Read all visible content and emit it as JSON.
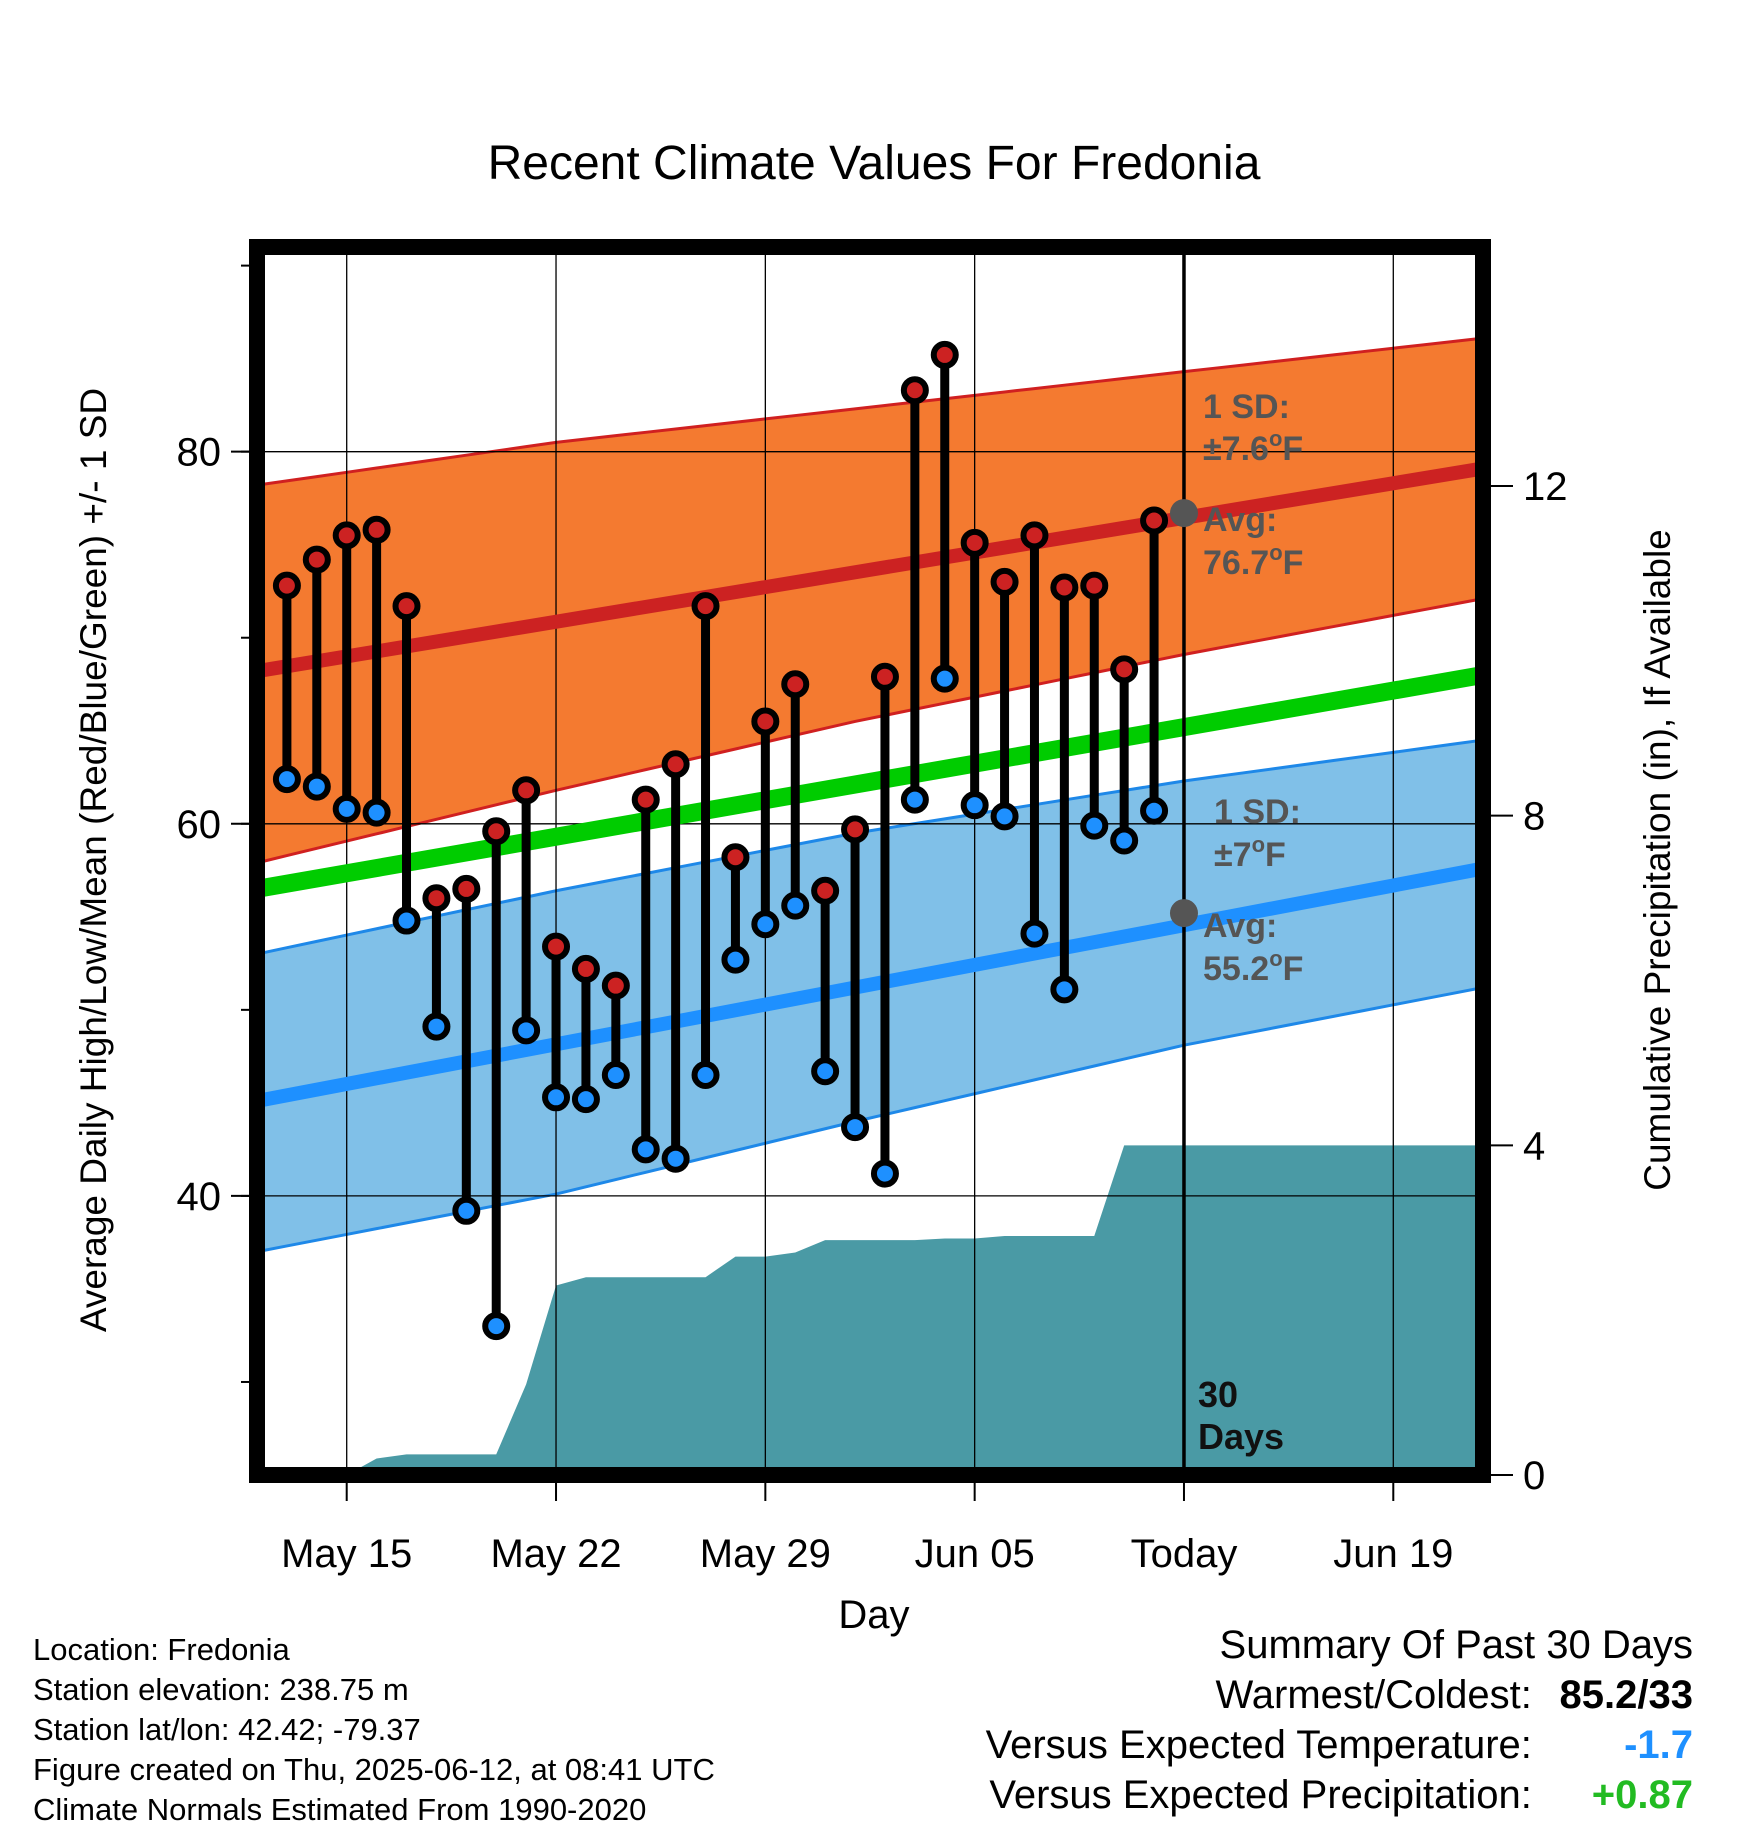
{
  "chart_data": {
    "type": "line",
    "title": "Recent Climate Values For Fredonia",
    "xlabel": "Day",
    "ylabel": "Average Daily High/Low/Mean (Red/Blue/Green) +/- 1 SD",
    "y2label": "Cumulative Precipitation (in), If Available",
    "x_tick_labels": [
      "May 15",
      "May 22",
      "May 29",
      "Jun 05",
      "Today",
      "Jun 19"
    ],
    "x_tick_dates": [
      "2025-05-15",
      "2025-05-22",
      "2025-05-29",
      "2025-06-05",
      "2025-06-12",
      "2025-06-19"
    ],
    "xlim": [
      "2025-05-12",
      "2025-06-22"
    ],
    "ylim": [
      25,
      91
    ],
    "y_ticks": [
      40,
      60,
      80
    ],
    "y2lim": [
      0,
      14.9
    ],
    "y2_ticks": [
      0,
      4,
      8,
      12
    ],
    "grid": true,
    "today": "2025-06-12",
    "today_label": "30\nDays",
    "daily": {
      "dates": [
        "2025-05-13",
        "2025-05-14",
        "2025-05-15",
        "2025-05-16",
        "2025-05-17",
        "2025-05-18",
        "2025-05-19",
        "2025-05-20",
        "2025-05-21",
        "2025-05-22",
        "2025-05-23",
        "2025-05-24",
        "2025-05-25",
        "2025-05-26",
        "2025-05-27",
        "2025-05-28",
        "2025-05-29",
        "2025-05-30",
        "2025-05-31",
        "2025-06-01",
        "2025-06-02",
        "2025-06-03",
        "2025-06-04",
        "2025-06-05",
        "2025-06-06",
        "2025-06-07",
        "2025-06-08",
        "2025-06-09",
        "2025-06-10",
        "2025-06-11"
      ],
      "high": [
        72.8,
        74.2,
        75.5,
        75.8,
        71.7,
        56.0,
        56.5,
        59.6,
        61.8,
        53.4,
        52.2,
        51.3,
        61.3,
        63.2,
        71.7,
        58.2,
        65.5,
        67.5,
        56.4,
        59.7,
        67.9,
        83.3,
        85.2,
        75.1,
        73.0,
        75.5,
        72.7,
        72.8,
        68.3,
        76.3
      ],
      "low": [
        62.4,
        62.0,
        60.8,
        60.6,
        54.8,
        49.1,
        39.2,
        33.0,
        48.9,
        45.3,
        45.2,
        46.5,
        42.5,
        42.0,
        46.5,
        52.7,
        54.6,
        55.6,
        46.7,
        43.7,
        41.2,
        61.3,
        67.8,
        61.0,
        60.4,
        54.1,
        51.1,
        59.9,
        59.1,
        60.7
      ]
    },
    "series": [
      {
        "name": "Average High",
        "color": "#cc2222",
        "x": [
          "2025-05-12",
          "2025-06-22"
        ],
        "values": [
          68.2,
          79.1
        ]
      },
      {
        "name": "Average Mean",
        "color": "#00cc00",
        "x": [
          "2025-05-12",
          "2025-06-22"
        ],
        "values": [
          56.5,
          68.0
        ]
      },
      {
        "name": "Average Low",
        "color": "#1e90ff",
        "x": [
          "2025-05-12",
          "2025-06-22"
        ],
        "values": [
          45.1,
          57.6
        ]
      }
    ],
    "bands": [
      {
        "name": "High +/- 1 SD",
        "color": "#f47a30",
        "upper": [
          [
            "2025-05-12",
            78.2
          ],
          [
            "2025-05-22",
            80.5
          ],
          [
            "2025-06-01",
            82.3
          ],
          [
            "2025-06-12",
            84.3
          ],
          [
            "2025-06-22",
            86.1
          ]
        ],
        "lower": [
          [
            "2025-05-12",
            57.9
          ],
          [
            "2025-05-22",
            61.8
          ],
          [
            "2025-06-01",
            65.5
          ],
          [
            "2025-06-12",
            69.1
          ],
          [
            "2025-06-22",
            72.1
          ]
        ]
      },
      {
        "name": "Low +/- 1 SD",
        "color": "#80c0e8",
        "upper": [
          [
            "2025-05-12",
            53.0
          ],
          [
            "2025-05-22",
            56.4
          ],
          [
            "2025-06-01",
            59.5
          ],
          [
            "2025-06-12",
            62.3
          ],
          [
            "2025-06-22",
            64.5
          ]
        ],
        "lower": [
          [
            "2025-05-12",
            37.0
          ],
          [
            "2025-05-22",
            40.1
          ],
          [
            "2025-06-01",
            44.0
          ],
          [
            "2025-06-12",
            48.1
          ],
          [
            "2025-06-22",
            51.2
          ]
        ]
      }
    ],
    "precipitation": {
      "color": "#4a9aa5",
      "dates": [
        "2025-05-12",
        "2025-05-15",
        "2025-05-16",
        "2025-05-17",
        "2025-05-18",
        "2025-05-19",
        "2025-05-20",
        "2025-05-21",
        "2025-05-22",
        "2025-05-23",
        "2025-05-24",
        "2025-05-25",
        "2025-05-26",
        "2025-05-27",
        "2025-05-28",
        "2025-05-29",
        "2025-05-30",
        "2025-05-31",
        "2025-06-01",
        "2025-06-02",
        "2025-06-03",
        "2025-06-04",
        "2025-06-05",
        "2025-06-06",
        "2025-06-07",
        "2025-06-08",
        "2025-06-09",
        "2025-06-10",
        "2025-06-22"
      ],
      "values": [
        0,
        0,
        0.2,
        0.25,
        0.25,
        0.25,
        0.25,
        1.1,
        2.3,
        2.4,
        2.4,
        2.4,
        2.4,
        2.4,
        2.65,
        2.65,
        2.7,
        2.85,
        2.85,
        2.85,
        2.85,
        2.87,
        2.87,
        2.9,
        2.9,
        2.9,
        2.9,
        4.0,
        4.0
      ]
    },
    "annotations": {
      "high_sd_label": "1 SD:",
      "high_sd_value": "±7.6",
      "high_avg_label": "Avg:",
      "high_avg_value": "76.7",
      "low_sd_label": "1 SD:",
      "low_sd_value": "±7",
      "low_avg_label": "Avg:",
      "low_avg_value": "55.2",
      "unit_sup": "o",
      "unit": "F"
    },
    "colors": {
      "high_point": "#cc2222",
      "low_point": "#1e90ff",
      "annotation_text": "#555555",
      "marker": "#555555"
    }
  },
  "info": {
    "location": "Location: Fredonia",
    "elevation": "Station elevation: 238.75 m",
    "latlon": "Station lat/lon: 42.42; -79.37",
    "created": "Figure created on Thu, 2025-06-12, at 08:41 UTC",
    "normals": "Climate Normals Estimated From 1990-2020"
  },
  "summary": {
    "title": "Summary Of Past 30 Days",
    "warm_cold_label": "Warmest/Coldest:",
    "warm_cold_value": "85.2/33",
    "temp_label": "Versus Expected Temperature:",
    "temp_value": "-1.7",
    "temp_color": "#1e90ff",
    "precip_label": "Versus Expected Precipitation:",
    "precip_value": "+0.87",
    "precip_color": "#22bb22"
  }
}
